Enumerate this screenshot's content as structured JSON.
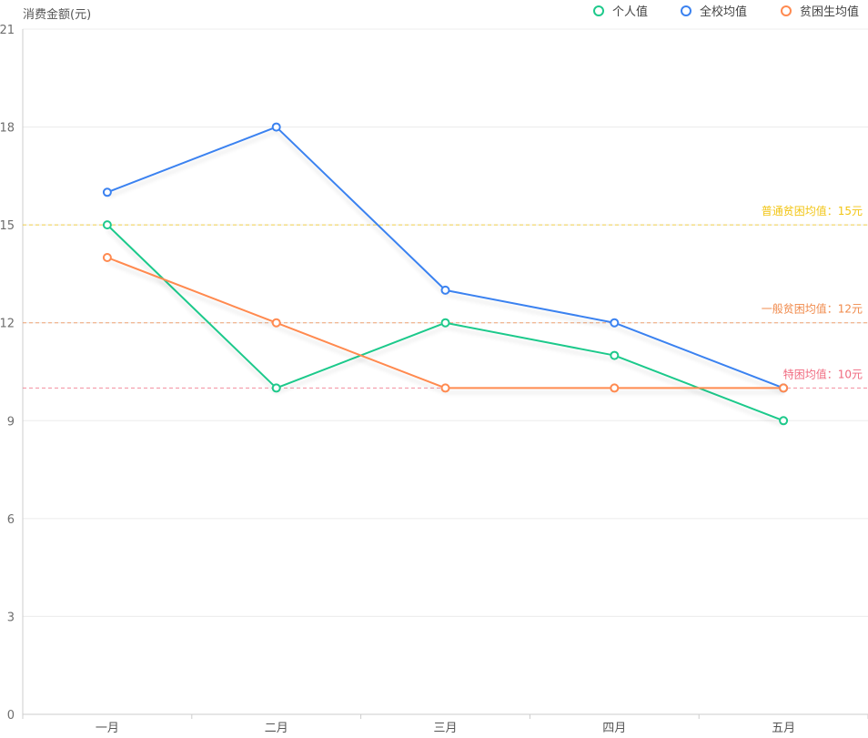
{
  "chart_data": {
    "type": "line",
    "ylabel": "消费金额(元)",
    "categories": [
      "一月",
      "二月",
      "三月",
      "四月",
      "五月"
    ],
    "ylim": [
      0,
      21
    ],
    "yticks": [
      0,
      3,
      6,
      9,
      12,
      15,
      18,
      21
    ],
    "grid": true,
    "legend_position": "top-right",
    "series": [
      {
        "name": "个人值",
        "color": "#1ec98b",
        "values": [
          15,
          10,
          12,
          11,
          9
        ]
      },
      {
        "name": "全校均值",
        "color": "#3b82f0",
        "values": [
          16,
          18,
          13,
          12,
          10
        ]
      },
      {
        "name": "贫困生均值",
        "color": "#ff8a50",
        "values": [
          14,
          12,
          10,
          10,
          10
        ]
      }
    ],
    "reference_lines": [
      {
        "label": "普通贫困均值：15元",
        "value": 15,
        "color": "#f2c515"
      },
      {
        "label": "一般贫困均值：12元",
        "value": 12,
        "color": "#f08a4b"
      },
      {
        "label": "特困均值：10元",
        "value": 10,
        "color": "#f06a7f"
      }
    ]
  }
}
